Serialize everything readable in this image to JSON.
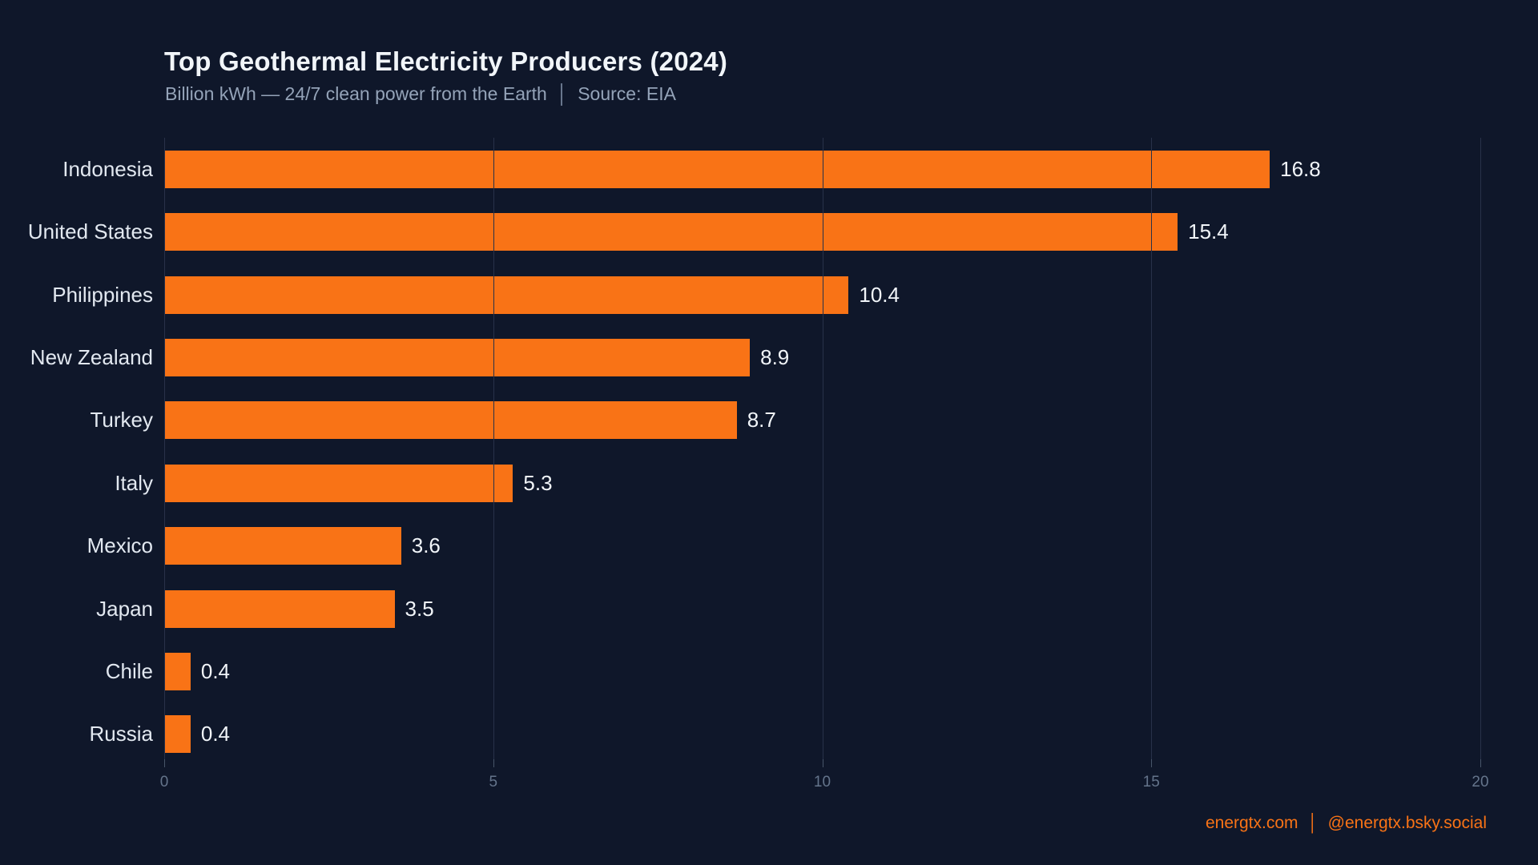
{
  "header": {
    "title": "Top Geothermal Electricity Producers (2024)",
    "subtitle_measure": "Billion kWh — 24/7 clean power from the Earth",
    "separator": "│",
    "source": "Source: EIA"
  },
  "chart_data": {
    "type": "bar",
    "orientation": "horizontal",
    "title": "Top Geothermal Electricity Producers (2024)",
    "subtitle": "Billion kWh — 24/7 clean power from the Earth │ Source: EIA",
    "categories": [
      "Indonesia",
      "United States",
      "Philippines",
      "New Zealand",
      "Turkey",
      "Italy",
      "Mexico",
      "Japan",
      "Chile",
      "Russia"
    ],
    "values": [
      16.8,
      15.4,
      10.4,
      8.9,
      8.7,
      5.3,
      3.6,
      3.5,
      0.4,
      0.4
    ],
    "value_labels": [
      "16.8",
      "15.4",
      "10.4",
      "8.9",
      "8.7",
      "5.3",
      "3.6",
      "3.5",
      "0.4",
      "0.4"
    ],
    "xlabel": "",
    "ylabel": "",
    "xlim": [
      0,
      20
    ],
    "x_ticks": [
      0,
      5,
      10,
      15,
      20
    ],
    "x_tick_labels": [
      "0",
      "5",
      "10",
      "15",
      "20"
    ],
    "grid": true,
    "legend": false
  },
  "footer": {
    "site": "energtx.com",
    "separator": "│",
    "handle": "@energtx.bsky.social"
  },
  "colors": {
    "background": "#0F172A",
    "bar": "#F97316",
    "accent": "#F97316",
    "title_text": "#F1F5F9",
    "subtitle_text": "#94A3B8",
    "category_text": "#E2E8F0",
    "value_text": "#F1F5F9",
    "tick_text": "#64748B",
    "gridline": "#283149"
  }
}
